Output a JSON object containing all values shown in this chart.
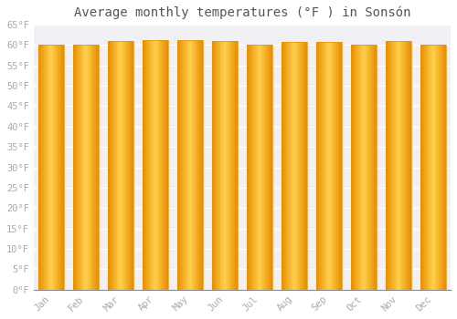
{
  "title": "Average monthly temperatures (°F ) in Sonsón",
  "months": [
    "Jan",
    "Feb",
    "Mar",
    "Apr",
    "May",
    "Jun",
    "Jul",
    "Aug",
    "Sep",
    "Oct",
    "Nov",
    "Dec"
  ],
  "values": [
    60.1,
    60.1,
    61.0,
    61.2,
    61.2,
    61.0,
    60.1,
    60.6,
    60.6,
    60.1,
    61.0,
    60.1
  ],
  "bar_color_center": "#FFD04E",
  "bar_color_edge": "#F5A800",
  "bar_color_outer": "#E89000",
  "ylim": [
    0,
    65
  ],
  "yticks": [
    0,
    5,
    10,
    15,
    20,
    25,
    30,
    35,
    40,
    45,
    50,
    55,
    60,
    65
  ],
  "background_color": "#ffffff",
  "plot_bg_color": "#f0f0f5",
  "grid_color": "#ffffff",
  "title_fontsize": 10,
  "tick_fontsize": 7.5,
  "tick_color": "#aaaaaa",
  "title_color": "#555555",
  "bar_width": 0.72,
  "gradient_steps": 40
}
